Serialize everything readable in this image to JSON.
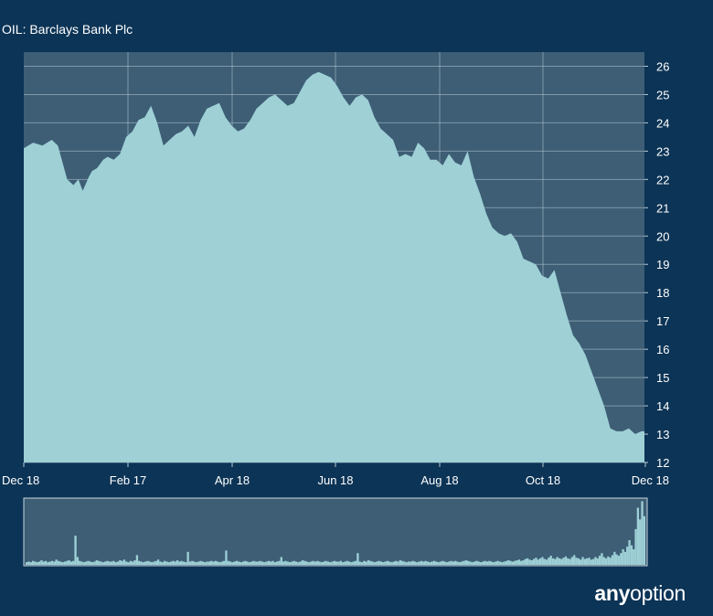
{
  "title": "OIL: Barclays Bank Plc",
  "logo": {
    "bold": "any",
    "regular": "option"
  },
  "colors": {
    "background": "#0c3456",
    "plot_background": "#3d5e75",
    "area_fill": "#9ed0d6",
    "grid": "#b7c9d3",
    "text": "#ffffff"
  },
  "chart_data": [
    {
      "type": "area",
      "title": "",
      "x_tick_labels": [
        "Dec 18",
        "Feb 17",
        "Apr 18",
        "Jun 18",
        "Aug 18",
        "Oct 18",
        "Dec 18"
      ],
      "y_ticks": [
        12,
        13,
        14,
        15,
        16,
        17,
        18,
        19,
        20,
        21,
        22,
        23,
        24,
        25,
        26
      ],
      "ylim": [
        12,
        26.5
      ],
      "y_axis_side": "right",
      "grid": true,
      "series": [
        {
          "x": [
            0,
            1.5,
            3,
            4.5,
            5.5,
            7,
            8,
            8.8,
            9.5,
            10.5,
            11,
            11.8,
            12.8,
            13.5,
            14.5,
            15.5,
            16.5,
            17.5,
            18.5,
            19.5,
            20.5,
            21.5,
            22.5,
            23.5,
            24.5,
            25.5,
            26.5,
            27.5,
            28.5,
            29.5,
            30.5,
            31.5,
            32.5,
            33.5,
            34.5,
            35.5,
            36.5,
            37.5,
            38.5,
            39.5,
            40.5,
            41.5,
            42.5,
            43.5,
            44.5,
            45.5,
            46.5,
            47.5,
            48.5,
            49.5,
            50.5,
            51.5,
            52.5,
            53.5,
            54.5,
            55.5,
            56.5,
            57.5,
            58.5,
            59.5,
            60.5,
            61.5,
            62.5,
            63.5,
            64.5,
            65.5,
            66.5,
            67.5,
            68.5,
            69.5,
            70.5,
            71.5,
            72.5,
            73.5,
            74.5,
            75.5,
            76.5,
            77.5,
            78.5,
            79.5,
            80.5,
            81.5,
            82.5,
            83.5,
            84.5,
            85.5,
            86.5,
            87.5,
            88.5,
            89.5,
            90.5,
            91.5,
            92.5,
            93.5,
            94.5,
            95.5,
            96.5,
            97.5,
            98.5,
            99.5,
            100
          ],
          "values": [
            23.1,
            23.3,
            23.2,
            23.4,
            23.2,
            22.0,
            21.8,
            22.0,
            21.6,
            22.1,
            22.3,
            22.4,
            22.7,
            22.8,
            22.7,
            22.9,
            23.5,
            23.7,
            24.1,
            24.2,
            24.6,
            24.0,
            23.2,
            23.4,
            23.6,
            23.7,
            23.9,
            23.5,
            24.1,
            24.5,
            24.6,
            24.7,
            24.2,
            23.9,
            23.7,
            23.8,
            24.1,
            24.5,
            24.7,
            24.9,
            25.0,
            24.8,
            24.6,
            24.7,
            25.1,
            25.5,
            25.7,
            25.8,
            25.7,
            25.6,
            25.3,
            24.9,
            24.6,
            24.9,
            25.0,
            24.8,
            24.2,
            23.8,
            23.6,
            23.4,
            22.8,
            22.9,
            22.8,
            23.3,
            23.1,
            22.7,
            22.7,
            22.5,
            22.9,
            22.6,
            22.5,
            23.0,
            22.1,
            21.5,
            20.8,
            20.3,
            20.1,
            20.0,
            20.1,
            19.8,
            19.2,
            19.1,
            19.0,
            18.6,
            18.5,
            18.8,
            18.0,
            17.2,
            16.5,
            16.2,
            15.8,
            15.2,
            14.6,
            14.0,
            13.2,
            13.1,
            13.1,
            13.2,
            13.0,
            13.1,
            13.1
          ]
        }
      ]
    },
    {
      "type": "bar",
      "title": "",
      "grid": false,
      "series": [
        {
          "values": [
            4,
            5,
            4,
            6,
            5,
            4,
            5,
            7,
            5,
            6,
            4,
            5,
            6,
            5,
            8,
            6,
            5,
            4,
            5,
            6,
            7,
            5,
            6,
            45,
            12,
            6,
            5,
            4,
            5,
            6,
            5,
            4,
            5,
            7,
            6,
            5,
            4,
            5,
            6,
            5,
            5,
            6,
            4,
            5,
            7,
            6,
            8,
            5,
            4,
            6,
            5,
            7,
            15,
            6,
            5,
            4,
            5,
            6,
            5,
            4,
            5,
            6,
            8,
            5,
            4,
            6,
            5,
            4,
            5,
            6,
            5,
            7,
            5,
            6,
            5,
            4,
            20,
            5,
            6,
            5,
            4,
            5,
            6,
            5,
            4,
            5,
            5,
            6,
            5,
            6,
            5,
            4,
            5,
            6,
            22,
            6,
            5,
            4,
            5,
            6,
            5,
            4,
            5,
            6,
            5,
            4,
            5,
            6,
            5,
            5,
            6,
            5,
            4,
            5,
            6,
            5,
            6,
            4,
            5,
            6,
            12,
            5,
            6,
            5,
            4,
            5,
            6,
            5,
            4,
            5,
            7,
            6,
            5,
            4,
            5,
            6,
            5,
            6,
            5,
            4,
            5,
            6,
            5,
            4,
            5,
            6,
            5,
            5,
            6,
            4,
            5,
            6,
            5,
            4,
            5,
            6,
            18,
            5,
            4,
            6,
            5,
            7,
            6,
            5,
            4,
            5,
            6,
            5,
            4,
            5,
            6,
            5,
            4,
            5,
            6,
            5,
            7,
            6,
            5,
            4,
            5,
            5,
            6,
            5,
            4,
            5,
            6,
            5,
            6,
            5,
            4,
            5,
            6,
            5,
            4,
            5,
            6,
            5,
            4,
            5,
            6,
            5,
            6,
            5,
            4,
            5,
            6,
            7,
            6,
            5,
            4,
            5,
            6,
            5,
            4,
            5,
            6,
            5,
            6,
            5,
            4,
            5,
            6,
            5,
            4,
            5,
            6,
            7,
            6,
            5,
            6,
            7,
            8,
            6,
            7,
            9,
            10,
            8,
            7,
            9,
            11,
            8,
            10,
            12,
            9,
            8,
            11,
            14,
            10,
            9,
            12,
            10,
            9,
            11,
            13,
            10,
            9,
            12,
            15,
            11,
            10,
            8,
            12,
            9,
            10,
            11,
            8,
            9,
            12,
            10,
            14,
            18,
            12,
            10,
            13,
            11,
            15,
            20,
            16,
            14,
            18,
            24,
            20,
            28,
            38,
            30,
            24,
            55,
            88,
            70,
            98,
            75
          ]
        }
      ]
    }
  ]
}
